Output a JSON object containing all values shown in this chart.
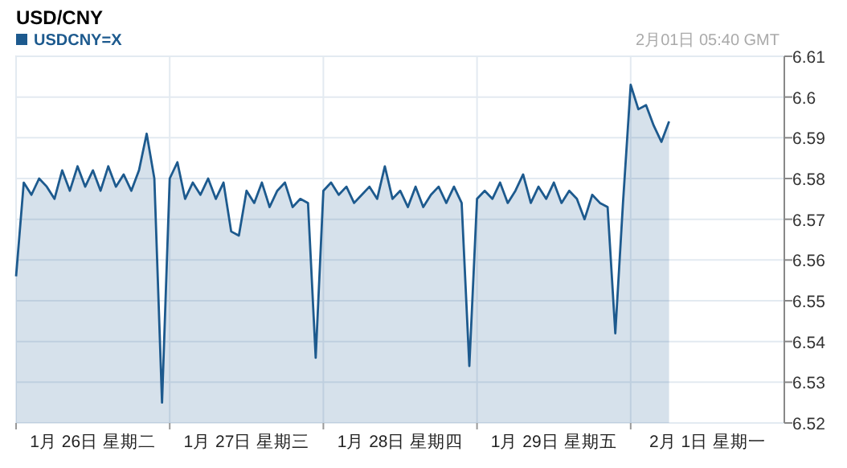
{
  "chart_data": {
    "type": "area",
    "title": "USD/CNY",
    "annotations": [
      "2月01日 05:40 GMT"
    ],
    "categories": [
      null,
      null,
      null,
      null,
      null,
      null,
      null,
      null,
      null,
      null,
      "1月 26日 星期二",
      null,
      null,
      null,
      null,
      null,
      null,
      null,
      null,
      null,
      null,
      null,
      null,
      null,
      null,
      null,
      null,
      null,
      null,
      null,
      "1月 27日 星期三",
      null,
      null,
      null,
      null,
      null,
      null,
      null,
      null,
      null,
      null,
      null,
      null,
      null,
      null,
      null,
      null,
      null,
      null,
      null,
      "1月 28日 星期四",
      null,
      null,
      null,
      null,
      null,
      null,
      null,
      null,
      null,
      null,
      null,
      null,
      null,
      null,
      null,
      null,
      null,
      null,
      null,
      "1月 29日 星期五",
      null,
      null,
      null,
      null,
      null,
      null,
      null,
      null,
      null,
      null,
      null,
      null,
      null,
      null,
      null,
      null,
      null,
      null,
      null,
      "2月  1日 星期一",
      null,
      null,
      null,
      null,
      null,
      null,
      null,
      null,
      null
    ],
    "ylim": [
      6.52,
      6.61
    ],
    "yticks": [
      6.52,
      6.53,
      6.54,
      6.55,
      6.56,
      6.57,
      6.58,
      6.59,
      6.6,
      6.61
    ],
    "grid": true,
    "legend": "top left",
    "series": [
      {
        "name": "USDCNY=X",
        "color": "#1d5a8e",
        "values": [
          6.556,
          6.579,
          6.576,
          6.58,
          6.578,
          6.575,
          6.582,
          6.577,
          6.583,
          6.578,
          6.582,
          6.577,
          6.583,
          6.578,
          6.581,
          6.577,
          6.582,
          6.591,
          6.58,
          6.525,
          6.58,
          6.584,
          6.575,
          6.579,
          6.576,
          6.58,
          6.575,
          6.579,
          6.567,
          6.566,
          6.577,
          6.574,
          6.579,
          6.573,
          6.577,
          6.579,
          6.573,
          6.575,
          6.574,
          6.536,
          6.577,
          6.579,
          6.576,
          6.578,
          6.574,
          6.576,
          6.578,
          6.575,
          6.583,
          6.575,
          6.577,
          6.573,
          6.578,
          6.573,
          6.576,
          6.578,
          6.574,
          6.578,
          6.574,
          6.534,
          6.575,
          6.577,
          6.575,
          6.579,
          6.574,
          6.577,
          6.581,
          6.574,
          6.578,
          6.575,
          6.579,
          6.574,
          6.577,
          6.575,
          6.57,
          6.576,
          6.574,
          6.573,
          6.542,
          6.574,
          6.603,
          6.597,
          6.598,
          6.593,
          6.589,
          6.594,
          null,
          null,
          null,
          null,
          null,
          null,
          null,
          null,
          null,
          null,
          null,
          null,
          null,
          null
        ]
      }
    ]
  }
}
